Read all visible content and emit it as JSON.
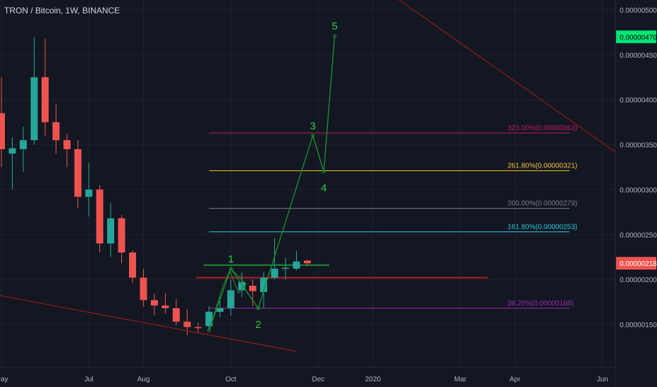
{
  "header": {
    "symbol": "TRON / Bitcoin, 1W, BINANCE"
  },
  "colors": {
    "background": "#131722",
    "grid": "#1e222d",
    "axis_text": "#b2b5be",
    "candle_up": "#26a69a",
    "candle_down": "#ef5350",
    "wave_green": "#1b8a2e",
    "wave_label": "#2ecc40",
    "trendline": "#8b1a1a",
    "support_line": "#b71c1c",
    "last_price_bg": "#ef5350",
    "target_price_bg": "#00e676"
  },
  "chart_data": {
    "type": "candlestick",
    "y_axis": {
      "scale": "linear",
      "ylim": [
        1.2e-06,
        5.1e-06
      ],
      "ticks": [
        "0.00000500",
        "0.00000450",
        "0.00000400",
        "0.00000350",
        "0.00000300",
        "0.00000250",
        "0.00000200",
        "0.00000150"
      ],
      "tick_values": [
        5e-06,
        4.5e-06,
        4e-06,
        3.5e-06,
        3e-06,
        2.5e-06,
        2e-06,
        1.5e-06
      ]
    },
    "x_axis": {
      "tick_labels": [
        {
          "label": "May",
          "index": 0
        },
        {
          "label": "Jul",
          "index": 8
        },
        {
          "label": "Aug",
          "index": 13
        },
        {
          "label": "Oct",
          "index": 21
        },
        {
          "label": "Dec",
          "index": 29
        },
        {
          "label": "2020",
          "index": 34
        },
        {
          "label": "Mar",
          "index": 42
        },
        {
          "label": "Apr",
          "index": 47
        },
        {
          "label": "Jun",
          "index": 55
        }
      ]
    },
    "candles": [
      {
        "i": 0,
        "o": 3.85e-06,
        "c": 3.45e-06,
        "h": 4.25e-06,
        "l": 3.25e-06
      },
      {
        "i": 1,
        "o": 3.4e-06,
        "c": 3.46e-06,
        "h": 3.58e-06,
        "l": 3e-06
      },
      {
        "i": 2,
        "o": 3.45e-06,
        "c": 3.55e-06,
        "h": 3.7e-06,
        "l": 3.2e-06
      },
      {
        "i": 3,
        "o": 3.55e-06,
        "c": 4.25e-06,
        "h": 4.7e-06,
        "l": 3.5e-06
      },
      {
        "i": 4,
        "o": 4.25e-06,
        "c": 3.75e-06,
        "h": 4.68e-06,
        "l": 3.6e-06
      },
      {
        "i": 5,
        "o": 3.75e-06,
        "c": 3.55e-06,
        "h": 3.95e-06,
        "l": 3.4e-06
      },
      {
        "i": 6,
        "o": 3.55e-06,
        "c": 3.45e-06,
        "h": 3.62e-06,
        "l": 3.25e-06
      },
      {
        "i": 7,
        "o": 3.45e-06,
        "c": 2.92e-06,
        "h": 3.55e-06,
        "l": 2.8e-06
      },
      {
        "i": 8,
        "o": 2.92e-06,
        "c": 3e-06,
        "h": 3.3e-06,
        "l": 2.7e-06
      },
      {
        "i": 9,
        "o": 3e-06,
        "c": 2.4e-06,
        "h": 3.05e-06,
        "l": 2.3e-06
      },
      {
        "i": 10,
        "o": 2.4e-06,
        "c": 2.68e-06,
        "h": 2.85e-06,
        "l": 2.25e-06
      },
      {
        "i": 11,
        "o": 2.68e-06,
        "c": 2.3e-06,
        "h": 2.72e-06,
        "l": 2.18e-06
      },
      {
        "i": 12,
        "o": 2.3e-06,
        "c": 2.02e-06,
        "h": 2.32e-06,
        "l": 1.96e-06
      },
      {
        "i": 13,
        "o": 2.02e-06,
        "c": 1.77e-06,
        "h": 2.12e-06,
        "l": 1.7e-06
      },
      {
        "i": 14,
        "o": 1.77e-06,
        "c": 1.71e-06,
        "h": 1.84e-06,
        "l": 1.6e-06
      },
      {
        "i": 15,
        "o": 1.71e-06,
        "c": 1.68e-06,
        "h": 1.85e-06,
        "l": 1.62e-06
      },
      {
        "i": 16,
        "o": 1.68e-06,
        "c": 1.53e-06,
        "h": 1.78e-06,
        "l": 1.49e-06
      },
      {
        "i": 17,
        "o": 1.53e-06,
        "c": 1.47e-06,
        "h": 1.67e-06,
        "l": 1.38e-06
      },
      {
        "i": 18,
        "o": 1.47e-06,
        "c": 1.46e-06,
        "h": 1.52e-06,
        "l": 1.4e-06
      },
      {
        "i": 19,
        "o": 1.48e-06,
        "c": 1.64e-06,
        "h": 1.7e-06,
        "l": 1.44e-06
      },
      {
        "i": 20,
        "o": 1.64e-06,
        "c": 1.68e-06,
        "h": 1.8e-06,
        "l": 1.58e-06
      },
      {
        "i": 21,
        "o": 1.68e-06,
        "c": 1.88e-06,
        "h": 2e-06,
        "l": 1.6e-06
      },
      {
        "i": 22,
        "o": 1.88e-06,
        "c": 1.97e-06,
        "h": 2.08e-06,
        "l": 1.8e-06
      },
      {
        "i": 23,
        "o": 1.93e-06,
        "c": 1.87e-06,
        "h": 2e-06,
        "l": 1.7e-06
      },
      {
        "i": 24,
        "o": 1.86e-06,
        "c": 2.02e-06,
        "h": 2.08e-06,
        "l": 1.68e-06
      },
      {
        "i": 25,
        "o": 2.02e-06,
        "c": 2.12e-06,
        "h": 2.46e-06,
        "l": 2e-06
      },
      {
        "i": 26,
        "o": 2.12e-06,
        "c": 2.13e-06,
        "h": 2.24e-06,
        "l": 2e-06
      },
      {
        "i": 27,
        "o": 2.12e-06,
        "c": 2.2e-06,
        "h": 2.32e-06,
        "l": 2.1e-06
      },
      {
        "i": 28,
        "o": 2.21e-06,
        "c": 2.18e-06,
        "h": 2.22e-06,
        "l": 2.15e-06
      }
    ],
    "fibonacci_levels": [
      {
        "label": "323.00%(0.00000363)",
        "price": 3.63e-06,
        "color": "#c2185b"
      },
      {
        "label": "261.80%(0.00000321)",
        "price": 3.21e-06,
        "color": "#fbc02d"
      },
      {
        "label": "200.00%(0.00000279)",
        "price": 2.79e-06,
        "color": "#787b86"
      },
      {
        "label": "161.80%(0.00000253)",
        "price": 2.53e-06,
        "color": "#26c6da"
      },
      {
        "label": "38.20%(0.00000168)",
        "price": 1.68e-06,
        "color": "#9c27b0"
      }
    ],
    "horizontal_lines": [
      {
        "name": "wave-1-level",
        "price": 2.16e-06,
        "start_index": 18.5,
        "end_index": 30.0,
        "color": "#1b8a2e"
      },
      {
        "name": "support-level",
        "price": 2.02e-06,
        "start_index": 17.8,
        "end_index": 44.5,
        "color": "#b71c1c"
      }
    ],
    "elliott_wave": {
      "points": [
        {
          "index": 19.0,
          "price": 1.43e-06,
          "label": ""
        },
        {
          "index": 21.0,
          "price": 2.12e-06,
          "label": "1"
        },
        {
          "index": 23.5,
          "price": 1.68e-06,
          "label": "2"
        },
        {
          "index": 28.5,
          "price": 3.6e-06,
          "label": "3"
        },
        {
          "index": 29.5,
          "price": 3.2e-06,
          "label": "4"
        },
        {
          "index": 30.5,
          "price": 4.71e-06,
          "label": "5"
        }
      ],
      "inner_zigzag": [
        {
          "index": 20.2,
          "price": 1.9e-06
        },
        {
          "index": 20.9,
          "price": 2.1e-06
        },
        {
          "index": 21.7,
          "price": 1.85e-06
        },
        {
          "index": 22.4,
          "price": 1.95e-06
        }
      ]
    },
    "trendlines": [
      {
        "name": "upper-trendline",
        "from": {
          "index": 33.0,
          "price": 5.4e-06
        },
        "to": {
          "index": 59.0,
          "price": 3.18e-06
        }
      },
      {
        "name": "lower-trendline",
        "from": {
          "index": -1.0,
          "price": 1.84e-06
        },
        "to": {
          "index": 27.0,
          "price": 1.2e-06
        }
      }
    ],
    "price_tags": [
      {
        "name": "target-price-tag",
        "label": "0.00000470",
        "price": 4.7e-06,
        "bg": "#00e676",
        "fg": "#000000"
      },
      {
        "name": "last-price-tag",
        "label": "0.00000218",
        "price": 2.18e-06,
        "bg": "#ef5350",
        "fg": "#ffffff"
      }
    ]
  }
}
